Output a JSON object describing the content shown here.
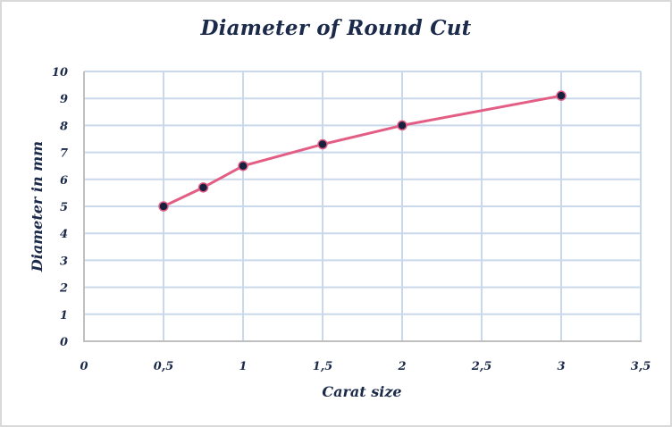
{
  "chart_data": {
    "type": "line",
    "title": "Diameter of Round Cut",
    "xlabel": "Carat size",
    "ylabel": "Diameter in mm",
    "xlim": [
      0,
      3.5
    ],
    "ylim": [
      0,
      10
    ],
    "x_ticks": [
      "0",
      "0,5",
      "1",
      "1,5",
      "2",
      "2,5",
      "3",
      "3,5"
    ],
    "x_tick_values": [
      0,
      0.5,
      1,
      1.5,
      2,
      2.5,
      3,
      3.5
    ],
    "y_ticks": [
      "0",
      "1",
      "2",
      "3",
      "4",
      "5",
      "6",
      "7",
      "8",
      "9",
      "10"
    ],
    "y_tick_values": [
      0,
      1,
      2,
      3,
      4,
      5,
      6,
      7,
      8,
      9,
      10
    ],
    "grid": true,
    "legend": null,
    "series": [
      {
        "name": "Diameter",
        "x": [
          0.5,
          0.75,
          1,
          1.5,
          2,
          3
        ],
        "y": [
          5.0,
          5.7,
          6.5,
          7.3,
          8.0,
          9.1
        ],
        "line_color": "#e35d84",
        "marker_color": "#17213f"
      }
    ]
  },
  "colors": {
    "grid": "#c9d9eb",
    "axis": "#bfbfbf",
    "frame_border": "#d9d9d9",
    "text": "#1b2a4a"
  }
}
